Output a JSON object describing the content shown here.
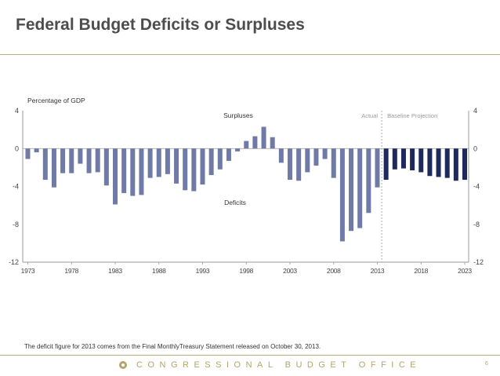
{
  "slide": {
    "title": "Federal Budget Deficits or Surpluses",
    "footnote": "The deficit figure for 2013 comes from the Final MonthlyTreasury Statement released on October 30, 2013.",
    "footer_org": "CONGRESSIONAL BUDGET OFFICE",
    "page_number": "6"
  },
  "colors": {
    "actual_bar": "#6f7aa6",
    "projection_bar": "#1f2a5c",
    "title_text": "#4d4d4d",
    "rule": "#b7ad88",
    "footer_text": "#b7a46a"
  },
  "chart_data": {
    "type": "bar",
    "ylabel": "Percentage of GDP",
    "ylim": [
      -12,
      4
    ],
    "y_ticks": [
      "4",
      "0",
      "-4",
      "-8",
      "-12"
    ],
    "x_tick_labels": [
      "1973",
      "1978",
      "1983",
      "1988",
      "1993",
      "1998",
      "2003",
      "2008",
      "2013",
      "2018",
      "2023"
    ],
    "grid": false,
    "annotations": {
      "surpluses": "Surpluses",
      "deficits": "Deficits",
      "actual": "Actual",
      "projection": "Baseline Projection"
    },
    "series": [
      {
        "name": "Actual",
        "x": [
          1973,
          1974,
          1975,
          1976,
          1977,
          1978,
          1979,
          1980,
          1981,
          1982,
          1983,
          1984,
          1985,
          1986,
          1987,
          1988,
          1989,
          1990,
          1991,
          1992,
          1993,
          1994,
          1995,
          1996,
          1997,
          1998,
          1999,
          2000,
          2001,
          2002,
          2003,
          2004,
          2005,
          2006,
          2007,
          2008,
          2009,
          2010,
          2011,
          2012,
          2013
        ],
        "values": [
          -1.1,
          -0.4,
          -3.3,
          -4.1,
          -2.6,
          -2.6,
          -1.6,
          -2.6,
          -2.5,
          -3.9,
          -5.9,
          -4.7,
          -5.0,
          -4.9,
          -3.1,
          -3.0,
          -2.7,
          -3.7,
          -4.4,
          -4.5,
          -3.8,
          -2.8,
          -2.2,
          -1.3,
          -0.3,
          0.8,
          1.3,
          2.3,
          1.2,
          -1.5,
          -3.3,
          -3.4,
          -2.5,
          -1.8,
          -1.1,
          -3.1,
          -9.8,
          -8.7,
          -8.4,
          -6.8,
          -4.1
        ]
      },
      {
        "name": "Baseline Projection",
        "x": [
          2014,
          2015,
          2016,
          2017,
          2018,
          2019,
          2020,
          2021,
          2022,
          2023
        ],
        "values": [
          -3.3,
          -2.2,
          -2.1,
          -2.3,
          -2.5,
          -2.9,
          -3.0,
          -3.1,
          -3.4,
          -3.3
        ]
      }
    ]
  }
}
